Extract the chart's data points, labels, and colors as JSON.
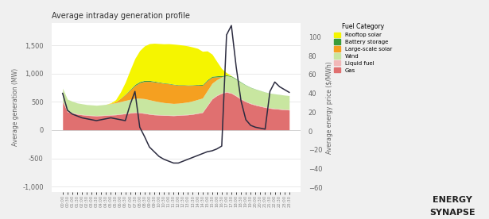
{
  "title": "Average intraday generation profile",
  "ylabel_left": "Average generation (MW)",
  "ylabel_right": "Average energy price ($/MWh)",
  "ylim_left": [
    -1100,
    1900
  ],
  "ylim_right": [
    -65,
    115
  ],
  "yticks_left": [
    -1000,
    -500,
    0,
    500,
    1000,
    1500
  ],
  "yticks_right": [
    -60,
    -40,
    -20,
    0,
    20,
    40,
    60,
    80,
    100
  ],
  "plot_bg": "#ffffff",
  "outer_bg": "#f0f0f0",
  "colors": {
    "Gas": "#e07070",
    "Liquid fuel": "#f2b8b8",
    "Wind": "#c8e6a0",
    "Large-scale solar": "#f5a020",
    "Battery storage": "#3a9c3a",
    "Rooftop solar": "#f5f500"
  },
  "legend_order": [
    "Rooftop solar",
    "Battery storage",
    "Large-scale solar",
    "Wind",
    "Liquid fuel",
    "Gas"
  ],
  "time_labels": [
    "00:00",
    "00:30",
    "01:00",
    "01:30",
    "02:00",
    "02:30",
    "03:00",
    "03:30",
    "04:00",
    "04:30",
    "05:00",
    "05:30",
    "06:00",
    "06:30",
    "07:00",
    "07:30",
    "08:00",
    "08:30",
    "09:00",
    "09:30",
    "10:00",
    "10:30",
    "11:00",
    "11:30",
    "12:00",
    "12:30",
    "13:00",
    "13:30",
    "14:00",
    "14:30",
    "15:00",
    "15:30",
    "16:00",
    "16:30",
    "17:00",
    "17:30",
    "18:00",
    "18:30",
    "19:00",
    "19:30",
    "20:00",
    "20:30",
    "21:00",
    "21:30",
    "22:00",
    "22:30",
    "23:00",
    "23:30"
  ],
  "gas": [
    500,
    320,
    300,
    280,
    270,
    260,
    255,
    250,
    255,
    260,
    265,
    270,
    280,
    290,
    300,
    310,
    305,
    295,
    280,
    270,
    265,
    260,
    258,
    255,
    260,
    265,
    270,
    280,
    295,
    310,
    430,
    550,
    610,
    650,
    670,
    650,
    600,
    545,
    500,
    465,
    440,
    420,
    400,
    385,
    375,
    368,
    360,
    355
  ],
  "liquid_fuel": [
    10,
    10,
    10,
    8,
    8,
    8,
    8,
    8,
    8,
    8,
    8,
    8,
    8,
    8,
    8,
    8,
    8,
    8,
    8,
    8,
    8,
    8,
    8,
    8,
    8,
    8,
    8,
    8,
    8,
    8,
    10,
    10,
    10,
    10,
    10,
    10,
    10,
    10,
    10,
    10,
    10,
    10,
    10,
    10,
    10,
    10,
    10,
    10
  ],
  "wind": [
    230,
    215,
    200,
    192,
    187,
    183,
    182,
    180,
    183,
    187,
    195,
    205,
    215,
    225,
    235,
    245,
    250,
    252,
    248,
    238,
    228,
    218,
    212,
    207,
    207,
    212,
    218,
    228,
    238,
    248,
    258,
    268,
    272,
    278,
    282,
    285,
    287,
    287,
    282,
    277,
    272,
    267,
    262,
    256,
    254,
    250,
    248,
    245
  ],
  "large_scale_solar": [
    0,
    0,
    0,
    0,
    0,
    0,
    0,
    0,
    0,
    0,
    5,
    18,
    55,
    105,
    165,
    225,
    275,
    305,
    325,
    335,
    338,
    340,
    340,
    333,
    318,
    308,
    293,
    275,
    255,
    225,
    175,
    105,
    48,
    8,
    0,
    0,
    0,
    0,
    0,
    0,
    0,
    0,
    0,
    0,
    0,
    0,
    0,
    0
  ],
  "battery_storage": [
    0,
    0,
    0,
    0,
    0,
    0,
    0,
    0,
    0,
    0,
    0,
    0,
    4,
    8,
    14,
    19,
    19,
    19,
    17,
    14,
    11,
    9,
    9,
    9,
    9,
    9,
    9,
    9,
    11,
    14,
    17,
    19,
    19,
    17,
    14,
    11,
    9,
    7,
    5,
    4,
    3,
    2,
    1,
    1,
    1,
    1,
    0,
    0
  ],
  "rooftop_solar": [
    0,
    0,
    0,
    0,
    0,
    0,
    0,
    0,
    0,
    0,
    8,
    35,
    110,
    210,
    340,
    460,
    550,
    610,
    650,
    670,
    680,
    690,
    700,
    708,
    710,
    700,
    690,
    668,
    638,
    588,
    510,
    390,
    252,
    122,
    38,
    4,
    0,
    0,
    0,
    0,
    0,
    0,
    0,
    0,
    0,
    0,
    0,
    0
  ],
  "price": [
    40,
    22,
    18,
    16,
    14,
    13,
    12,
    11,
    12,
    13,
    14,
    13,
    12,
    11,
    28,
    42,
    4,
    -6,
    -17,
    -22,
    -27,
    -30,
    -32,
    -34,
    -34,
    -32,
    -30,
    -28,
    -26,
    -24,
    -22,
    -21,
    -19,
    -16,
    102,
    112,
    68,
    32,
    12,
    6,
    4,
    3,
    2,
    42,
    52,
    47,
    44,
    41
  ]
}
